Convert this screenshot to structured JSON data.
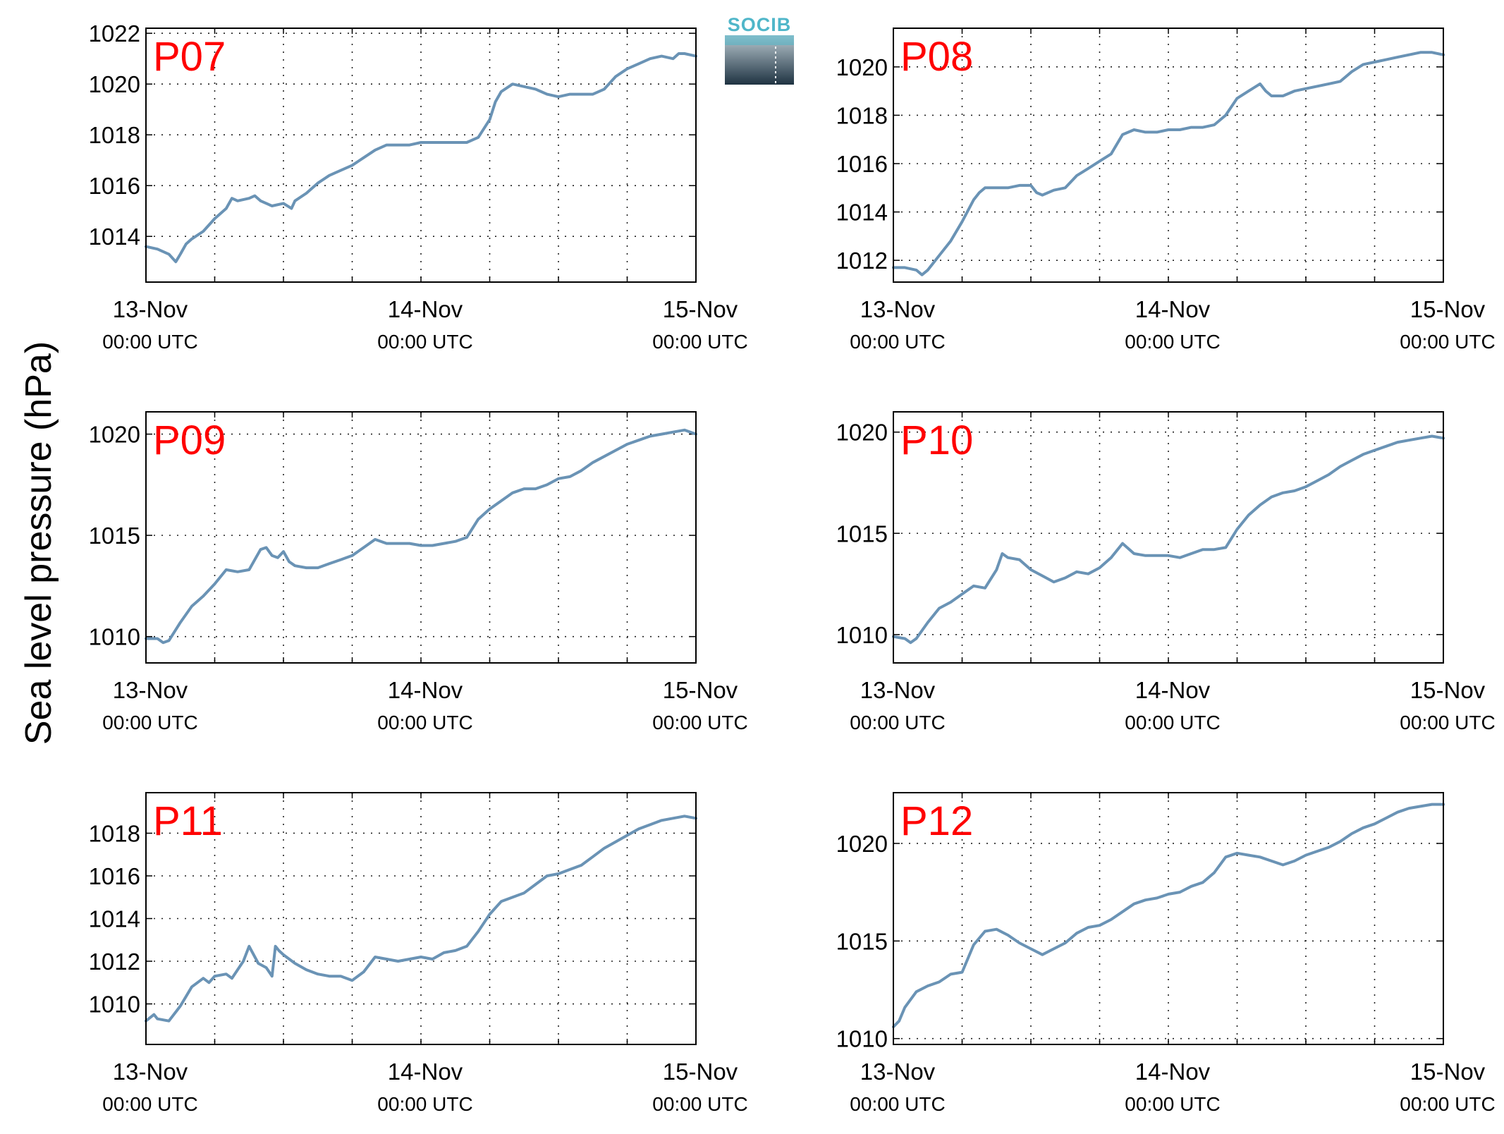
{
  "y_axis_title": "Sea level pressure (hPa)",
  "logo": {
    "text": "SOCIB",
    "color": "#4fb6c9"
  },
  "line_color": "#6a93b5",
  "chart_data": [
    {
      "type": "line",
      "panel_label": "P07",
      "x_ticks": [
        {
          "value": 0,
          "date": "13-Nov",
          "time": "00:00 UTC"
        },
        {
          "value": 24,
          "date": "14-Nov",
          "time": "00:00 UTC"
        },
        {
          "value": 48,
          "date": "15-Nov",
          "time": "00:00 UTC"
        }
      ],
      "y_ticks": [
        1014,
        1016,
        1018,
        1020,
        1022
      ],
      "xlim": [
        0,
        48
      ],
      "ylim": [
        1012.2,
        1022.2
      ],
      "grid": true,
      "series": [
        {
          "x": [
            0,
            1,
            2,
            2.6,
            3,
            3.5,
            4,
            5,
            6,
            7,
            7.5,
            8,
            9,
            9.5,
            10,
            11,
            12,
            12.7,
            13,
            14,
            15,
            16,
            16.5,
            17,
            18,
            19,
            20,
            21,
            22,
            23,
            24,
            25,
            26,
            27,
            28,
            29,
            30,
            30.5,
            31,
            32,
            33,
            34,
            35,
            36,
            37,
            38,
            39,
            40,
            41,
            42,
            43,
            44,
            45,
            46,
            46.5,
            47,
            48
          ],
          "y": [
            1013.6,
            1013.5,
            1013.3,
            1013.0,
            1013.3,
            1013.7,
            1013.9,
            1014.2,
            1014.7,
            1015.1,
            1015.5,
            1015.4,
            1015.5,
            1015.6,
            1015.4,
            1015.2,
            1015.3,
            1015.1,
            1015.4,
            1015.7,
            1016.1,
            1016.4,
            1016.5,
            1016.6,
            1016.8,
            1017.1,
            1017.4,
            1017.6,
            1017.6,
            1017.6,
            1017.7,
            1017.7,
            1017.7,
            1017.7,
            1017.7,
            1017.9,
            1018.6,
            1019.3,
            1019.7,
            1020.0,
            1019.9,
            1019.8,
            1019.6,
            1019.5,
            1019.6,
            1019.6,
            1019.6,
            1019.8,
            1020.3,
            1020.6,
            1020.8,
            1021.0,
            1021.1,
            1021.0,
            1021.2,
            1021.2,
            1021.1
          ]
        }
      ]
    },
    {
      "type": "line",
      "panel_label": "P08",
      "x_ticks": [
        {
          "value": 0,
          "date": "13-Nov",
          "time": "00:00 UTC"
        },
        {
          "value": 24,
          "date": "14-Nov",
          "time": "00:00 UTC"
        },
        {
          "value": 48,
          "date": "15-Nov",
          "time": "00:00 UTC"
        }
      ],
      "y_ticks": [
        1012,
        1014,
        1016,
        1018,
        1020
      ],
      "xlim": [
        0,
        48
      ],
      "ylim": [
        1011.1,
        1021.6
      ],
      "grid": true,
      "series": [
        {
          "x": [
            0,
            1,
            2,
            2.5,
            3,
            4,
            5,
            6,
            7,
            7.5,
            8,
            9,
            10,
            11,
            12,
            12.5,
            13,
            14,
            15,
            16,
            17,
            18,
            19,
            20,
            21,
            22,
            23,
            24,
            25,
            26,
            27,
            28,
            29,
            30,
            31,
            32,
            32.5,
            33,
            34,
            35,
            36,
            37,
            38,
            39,
            40,
            41,
            42,
            43,
            44,
            45,
            46,
            47,
            48
          ],
          "y": [
            1011.7,
            1011.7,
            1011.6,
            1011.4,
            1011.6,
            1012.2,
            1012.8,
            1013.6,
            1014.5,
            1014.8,
            1015.0,
            1015.0,
            1015.0,
            1015.1,
            1015.1,
            1014.8,
            1014.7,
            1014.9,
            1015.0,
            1015.5,
            1015.8,
            1016.1,
            1016.4,
            1017.2,
            1017.4,
            1017.3,
            1017.3,
            1017.4,
            1017.4,
            1017.5,
            1017.5,
            1017.6,
            1018.0,
            1018.7,
            1019.0,
            1019.3,
            1019.0,
            1018.8,
            1018.8,
            1019.0,
            1019.1,
            1019.2,
            1019.3,
            1019.4,
            1019.8,
            1020.1,
            1020.2,
            1020.3,
            1020.4,
            1020.5,
            1020.6,
            1020.6,
            1020.5
          ]
        }
      ]
    },
    {
      "type": "line",
      "panel_label": "P09",
      "x_ticks": [
        {
          "value": 0,
          "date": "13-Nov",
          "time": "00:00 UTC"
        },
        {
          "value": 24,
          "date": "14-Nov",
          "time": "00:00 UTC"
        },
        {
          "value": 48,
          "date": "15-Nov",
          "time": "00:00 UTC"
        }
      ],
      "y_ticks": [
        1010,
        1015,
        1020
      ],
      "xlim": [
        0,
        48
      ],
      "ylim": [
        1008.7,
        1021.1
      ],
      "grid": true,
      "series": [
        {
          "x": [
            0,
            1,
            1.5,
            2,
            3,
            4,
            5,
            6,
            7,
            8,
            9,
            10,
            10.5,
            11,
            11.5,
            12,
            12.5,
            13,
            14,
            15,
            16,
            17,
            18,
            19,
            20,
            21,
            22,
            23,
            24,
            25,
            26,
            27,
            28,
            29,
            30,
            31,
            32,
            33,
            34,
            35,
            36,
            37,
            38,
            39,
            40,
            41,
            42,
            43,
            44,
            45,
            46,
            47,
            48
          ],
          "y": [
            1009.9,
            1009.9,
            1009.7,
            1009.8,
            1010.7,
            1011.5,
            1012.0,
            1012.6,
            1013.3,
            1013.2,
            1013.3,
            1014.3,
            1014.4,
            1014.0,
            1013.9,
            1014.2,
            1013.7,
            1013.5,
            1013.4,
            1013.4,
            1013.6,
            1013.8,
            1014.0,
            1014.4,
            1014.8,
            1014.6,
            1014.6,
            1014.6,
            1014.5,
            1014.5,
            1014.6,
            1014.7,
            1014.9,
            1015.8,
            1016.3,
            1016.7,
            1017.1,
            1017.3,
            1017.3,
            1017.5,
            1017.8,
            1017.9,
            1018.2,
            1018.6,
            1018.9,
            1019.2,
            1019.5,
            1019.7,
            1019.9,
            1020.0,
            1020.1,
            1020.2,
            1020.0
          ]
        }
      ]
    },
    {
      "type": "line",
      "panel_label": "P10",
      "x_ticks": [
        {
          "value": 0,
          "date": "13-Nov",
          "time": "00:00 UTC"
        },
        {
          "value": 24,
          "date": "14-Nov",
          "time": "00:00 UTC"
        },
        {
          "value": 48,
          "date": "15-Nov",
          "time": "00:00 UTC"
        }
      ],
      "y_ticks": [
        1010,
        1015,
        1020
      ],
      "xlim": [
        0,
        48
      ],
      "ylim": [
        1008.6,
        1021.0
      ],
      "grid": true,
      "series": [
        {
          "x": [
            0,
            1,
            1.5,
            2,
            3,
            4,
            5,
            6,
            7,
            8,
            9,
            9.5,
            10,
            11,
            12,
            13,
            14,
            15,
            16,
            17,
            18,
            19,
            20,
            21,
            22,
            23,
            24,
            25,
            26,
            27,
            28,
            29,
            30,
            31,
            32,
            33,
            34,
            35,
            36,
            37,
            38,
            39,
            40,
            41,
            42,
            43,
            44,
            45,
            46,
            47,
            48
          ],
          "y": [
            1009.9,
            1009.8,
            1009.6,
            1009.8,
            1010.6,
            1011.3,
            1011.6,
            1012.0,
            1012.4,
            1012.3,
            1013.2,
            1014.0,
            1013.8,
            1013.7,
            1013.2,
            1012.9,
            1012.6,
            1012.8,
            1013.1,
            1013.0,
            1013.3,
            1013.8,
            1014.5,
            1014.0,
            1013.9,
            1013.9,
            1013.9,
            1013.8,
            1014.0,
            1014.2,
            1014.2,
            1014.3,
            1015.2,
            1015.9,
            1016.4,
            1016.8,
            1017.0,
            1017.1,
            1017.3,
            1017.6,
            1017.9,
            1018.3,
            1018.6,
            1018.9,
            1019.1,
            1019.3,
            1019.5,
            1019.6,
            1019.7,
            1019.8,
            1019.7
          ]
        }
      ]
    },
    {
      "type": "line",
      "panel_label": "P11",
      "x_ticks": [
        {
          "value": 0,
          "date": "13-Nov",
          "time": "00:00 UTC"
        },
        {
          "value": 24,
          "date": "14-Nov",
          "time": "00:00 UTC"
        },
        {
          "value": 48,
          "date": "15-Nov",
          "time": "00:00 UTC"
        }
      ],
      "y_ticks": [
        1010,
        1012,
        1014,
        1016,
        1018
      ],
      "xlim": [
        0,
        48
      ],
      "ylim": [
        1008.1,
        1019.9
      ],
      "grid": true,
      "series": [
        {
          "x": [
            0,
            0.7,
            1,
            2,
            3,
            4,
            5,
            5.5,
            6,
            7,
            7.5,
            8,
            8.5,
            9,
            9.8,
            10.5,
            11,
            11.3,
            11.6,
            12,
            13,
            14,
            15,
            16,
            17,
            18,
            19,
            20,
            21,
            22,
            23,
            24,
            25,
            26,
            27,
            28,
            29,
            30,
            31,
            32,
            33,
            34,
            35,
            36,
            37,
            38,
            39,
            40,
            41,
            42,
            43,
            44,
            45,
            46,
            47,
            48
          ],
          "y": [
            1009.2,
            1009.5,
            1009.3,
            1009.2,
            1009.9,
            1010.8,
            1011.2,
            1011.0,
            1011.3,
            1011.4,
            1011.2,
            1011.6,
            1012.0,
            1012.7,
            1011.9,
            1011.7,
            1011.3,
            1012.7,
            1012.5,
            1012.3,
            1011.9,
            1011.6,
            1011.4,
            1011.3,
            1011.3,
            1011.1,
            1011.5,
            1012.2,
            1012.1,
            1012.0,
            1012.1,
            1012.2,
            1012.1,
            1012.4,
            1012.5,
            1012.7,
            1013.4,
            1014.2,
            1014.8,
            1015.0,
            1015.2,
            1015.6,
            1016.0,
            1016.1,
            1016.3,
            1016.5,
            1016.9,
            1017.3,
            1017.6,
            1017.9,
            1018.2,
            1018.4,
            1018.6,
            1018.7,
            1018.8,
            1018.7
          ]
        }
      ]
    },
    {
      "type": "line",
      "panel_label": "P12",
      "x_ticks": [
        {
          "value": 0,
          "date": "13-Nov",
          "time": "00:00 UTC"
        },
        {
          "value": 24,
          "date": "14-Nov",
          "time": "00:00 UTC"
        },
        {
          "value": 48,
          "date": "15-Nov",
          "time": "00:00 UTC"
        }
      ],
      "y_ticks": [
        1010,
        1015,
        1020
      ],
      "xlim": [
        0,
        48
      ],
      "ylim": [
        1009.7,
        1022.6
      ],
      "grid": true,
      "series": [
        {
          "x": [
            0,
            0.5,
            1,
            2,
            3,
            4,
            5,
            6,
            7,
            8,
            9,
            10,
            11,
            12,
            13,
            14,
            15,
            16,
            17,
            18,
            19,
            20,
            21,
            22,
            23,
            24,
            25,
            26,
            27,
            28,
            29,
            30,
            31,
            32,
            33,
            34,
            35,
            36,
            37,
            38,
            39,
            40,
            41,
            42,
            43,
            44,
            45,
            46,
            47,
            48
          ],
          "y": [
            1010.6,
            1010.9,
            1011.6,
            1012.4,
            1012.7,
            1012.9,
            1013.3,
            1013.4,
            1014.8,
            1015.5,
            1015.6,
            1015.3,
            1014.9,
            1014.6,
            1014.3,
            1014.6,
            1014.9,
            1015.4,
            1015.7,
            1015.8,
            1016.1,
            1016.5,
            1016.9,
            1017.1,
            1017.2,
            1017.4,
            1017.5,
            1017.8,
            1018.0,
            1018.5,
            1019.3,
            1019.5,
            1019.4,
            1019.3,
            1019.1,
            1018.9,
            1019.1,
            1019.4,
            1019.6,
            1019.8,
            1020.1,
            1020.5,
            1020.8,
            1021.0,
            1021.3,
            1021.6,
            1021.8,
            1021.9,
            1022.0,
            1022.0
          ]
        }
      ]
    }
  ]
}
